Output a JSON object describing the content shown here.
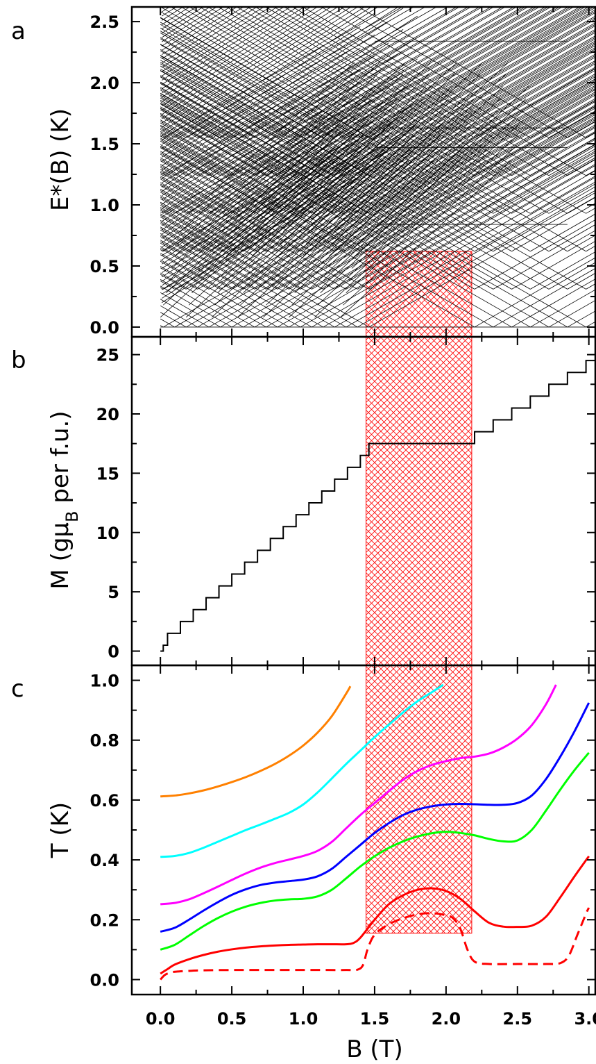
{
  "panel_labels": [
    "a",
    "b",
    "c"
  ],
  "hatch_color": "#ff0000",
  "chart_data": [
    {
      "panel": "a",
      "type": "line",
      "ylabel": "E*(B) (K)",
      "xlabel": "",
      "xlim": [
        -0.2,
        3.05
      ],
      "ylim": [
        -0.08,
        2.62
      ],
      "yticks": [
        0.0,
        0.5,
        1.0,
        1.5,
        2.0,
        2.5
      ],
      "ytick_labels": [
        "0.0",
        "0.5",
        "1.0",
        "1.5",
        "2.0",
        "2.5"
      ],
      "grid": false,
      "description_series": "Zeeman-split energy levels: dense fan of crossing lines (in-figure straight lines, slopes ±0.67 K/T)",
      "fan_slope": 0.6716,
      "crossing_fields": [
        0.02,
        0.1,
        0.18,
        0.26,
        0.34,
        0.42,
        0.5,
        0.58,
        0.66,
        0.74,
        0.82,
        0.9,
        0.98,
        1.06,
        1.14,
        1.22,
        1.3,
        1.38,
        1.46,
        2.2,
        2.33,
        2.46,
        2.59,
        2.72,
        2.85,
        2.98
      ],
      "plateau_levels": [
        0.84,
        1.47,
        1.63,
        2.34
      ],
      "hatch_box": {
        "x": [
          1.44,
          2.18
        ],
        "y": [
          0,
          0.62
        ]
      }
    },
    {
      "panel": "b",
      "type": "line",
      "ylabel": "M (gμB per f.u.)",
      "ylabel_parts": {
        "pre": "M (gμ",
        "sub": "B",
        "post": " per f.u.)"
      },
      "xlabel": "",
      "xlim": [
        -0.2,
        3.05
      ],
      "ylim": [
        -1.2,
        26.5
      ],
      "yticks": [
        0,
        5,
        10,
        15,
        20,
        25
      ],
      "ytick_labels": [
        "0",
        "5",
        "10",
        "15",
        "20",
        "25"
      ],
      "grid": false,
      "series": [
        {
          "name": "",
          "color": "#000000",
          "kind": "staircase",
          "step_fields": [
            0.02,
            0.05,
            0.14,
            0.23,
            0.32,
            0.41,
            0.5,
            0.59,
            0.68,
            0.77,
            0.86,
            0.95,
            1.04,
            1.13,
            1.22,
            1.31,
            1.4,
            1.46,
            2.2,
            2.33,
            2.46,
            2.59,
            2.72,
            2.85
          ],
          "step_values": [
            0.5,
            1.5,
            2.5,
            3.5,
            4.5,
            5.5,
            6.5,
            7.5,
            8.5,
            9.5,
            10.5,
            11.5,
            12.5,
            13.5,
            14.5,
            15.5,
            16.5,
            17.5,
            18.5,
            19.5,
            20.5,
            21.5,
            22.5,
            23.5,
            24.5
          ],
          "x_end": 3.05
        }
      ],
      "hatch_box": {
        "x": [
          1.44,
          2.18
        ],
        "y": "full"
      }
    },
    {
      "panel": "c",
      "type": "line",
      "ylabel": "T (K)",
      "xlabel": "B (T)",
      "xlim": [
        -0.2,
        3.05
      ],
      "ylim": [
        -0.05,
        1.05
      ],
      "yticks": [
        0.0,
        0.2,
        0.4,
        0.6,
        0.8,
        1.0
      ],
      "ytick_labels": [
        "0.0",
        "0.2",
        "0.4",
        "0.6",
        "0.8",
        "1.0"
      ],
      "xticks": [
        0.0,
        0.5,
        1.0,
        1.5,
        2.0,
        2.5,
        3.0
      ],
      "xtick_labels": [
        "0.0",
        "0.5",
        "1.0",
        "1.5",
        "2.0",
        "2.5",
        "3.0"
      ],
      "grid": false,
      "hatch_box": {
        "x": [
          1.44,
          2.18
        ],
        "y": [
          0.155,
          1.05
        ]
      },
      "series": [
        {
          "name": "",
          "color": "#ff8000",
          "dashed": false,
          "x": [
            0.0,
            0.1,
            0.2,
            0.3,
            0.4,
            0.5,
            0.6,
            0.7,
            0.8,
            0.9,
            1.0,
            1.1,
            1.2,
            1.3,
            1.33
          ],
          "y": [
            0.612,
            0.615,
            0.622,
            0.632,
            0.645,
            0.66,
            0.677,
            0.697,
            0.72,
            0.748,
            0.782,
            0.825,
            0.88,
            0.955,
            0.98
          ]
        },
        {
          "name": "",
          "color": "#00ffff",
          "dashed": false,
          "x": [
            0.0,
            0.1,
            0.2,
            0.3,
            0.4,
            0.5,
            0.6,
            0.7,
            0.8,
            0.9,
            1.0,
            1.1,
            1.2,
            1.3,
            1.4,
            1.5,
            1.6,
            1.7,
            1.8,
            1.9,
            1.98
          ],
          "y": [
            0.41,
            0.413,
            0.423,
            0.44,
            0.46,
            0.48,
            0.5,
            0.518,
            0.537,
            0.557,
            0.585,
            0.625,
            0.672,
            0.72,
            0.765,
            0.81,
            0.852,
            0.893,
            0.93,
            0.96,
            0.985
          ]
        },
        {
          "name": "",
          "color": "#ff00ff",
          "dashed": false,
          "x": [
            0.0,
            0.1,
            0.2,
            0.3,
            0.4,
            0.5,
            0.6,
            0.7,
            0.8,
            0.9,
            1.0,
            1.1,
            1.2,
            1.3,
            1.4,
            1.5,
            1.6,
            1.7,
            1.8,
            1.9,
            2.0,
            2.1,
            2.2,
            2.3,
            2.4,
            2.5,
            2.6,
            2.7,
            2.77
          ],
          "y": [
            0.252,
            0.256,
            0.268,
            0.288,
            0.31,
            0.333,
            0.355,
            0.374,
            0.389,
            0.401,
            0.413,
            0.43,
            0.46,
            0.505,
            0.55,
            0.59,
            0.63,
            0.668,
            0.697,
            0.717,
            0.73,
            0.74,
            0.745,
            0.755,
            0.775,
            0.805,
            0.85,
            0.92,
            0.985
          ]
        },
        {
          "name": "",
          "color": "#0000ff",
          "dashed": false,
          "x": [
            0.0,
            0.1,
            0.2,
            0.3,
            0.4,
            0.5,
            0.6,
            0.7,
            0.8,
            0.9,
            1.0,
            1.1,
            1.2,
            1.3,
            1.4,
            1.5,
            1.6,
            1.7,
            1.8,
            1.9,
            2.0,
            2.1,
            2.2,
            2.3,
            2.4,
            2.5,
            2.6,
            2.7,
            2.8,
            2.9,
            3.0
          ],
          "y": [
            0.16,
            0.173,
            0.2,
            0.23,
            0.258,
            0.283,
            0.302,
            0.316,
            0.324,
            0.329,
            0.334,
            0.345,
            0.37,
            0.41,
            0.45,
            0.49,
            0.523,
            0.55,
            0.568,
            0.579,
            0.585,
            0.587,
            0.586,
            0.584,
            0.584,
            0.59,
            0.615,
            0.67,
            0.745,
            0.83,
            0.925
          ]
        },
        {
          "name": "",
          "color": "#00ff00",
          "dashed": false,
          "x": [
            0.0,
            0.1,
            0.2,
            0.3,
            0.4,
            0.5,
            0.6,
            0.7,
            0.8,
            0.9,
            1.0,
            1.1,
            1.2,
            1.3,
            1.4,
            1.5,
            1.6,
            1.7,
            1.8,
            1.9,
            2.0,
            2.1,
            2.2,
            2.3,
            2.4,
            2.5,
            2.6,
            2.7,
            2.8,
            2.9,
            3.0
          ],
          "y": [
            0.1,
            0.116,
            0.147,
            0.178,
            0.205,
            0.227,
            0.244,
            0.256,
            0.264,
            0.268,
            0.27,
            0.278,
            0.3,
            0.338,
            0.378,
            0.412,
            0.44,
            0.462,
            0.478,
            0.489,
            0.494,
            0.49,
            0.482,
            0.47,
            0.462,
            0.465,
            0.5,
            0.565,
            0.635,
            0.7,
            0.758
          ]
        },
        {
          "name": "",
          "color": "#ff0000",
          "dashed": false,
          "x": [
            0.0,
            0.05,
            0.1,
            0.2,
            0.3,
            0.4,
            0.5,
            0.6,
            0.7,
            0.8,
            0.9,
            1.0,
            1.1,
            1.2,
            1.3,
            1.35,
            1.4,
            1.5,
            1.6,
            1.7,
            1.8,
            1.9,
            2.0,
            2.1,
            2.2,
            2.3,
            2.4,
            2.5,
            2.6,
            2.7,
            2.8,
            2.9,
            3.0
          ],
          "y": [
            0.02,
            0.035,
            0.05,
            0.068,
            0.082,
            0.093,
            0.101,
            0.107,
            0.111,
            0.114,
            0.116,
            0.117,
            0.118,
            0.118,
            0.118,
            0.122,
            0.14,
            0.2,
            0.252,
            0.282,
            0.3,
            0.305,
            0.296,
            0.27,
            0.228,
            0.19,
            0.177,
            0.176,
            0.18,
            0.21,
            0.275,
            0.345,
            0.412
          ]
        },
        {
          "name": "",
          "color": "#ff0000",
          "dashed": true,
          "x": [
            0.0,
            0.03,
            0.06,
            0.1,
            0.2,
            0.3,
            0.5,
            0.7,
            0.9,
            1.1,
            1.3,
            1.38,
            1.42,
            1.45,
            1.5,
            1.6,
            1.7,
            1.8,
            1.9,
            2.0,
            2.05,
            2.1,
            2.15,
            2.2,
            2.3,
            2.5,
            2.7,
            2.8,
            2.86,
            2.92,
            2.98,
            3.0
          ],
          "y": [
            0.0,
            0.015,
            0.022,
            0.026,
            0.029,
            0.031,
            0.032,
            0.032,
            0.032,
            0.032,
            0.032,
            0.033,
            0.05,
            0.1,
            0.15,
            0.185,
            0.205,
            0.218,
            0.222,
            0.215,
            0.205,
            0.17,
            0.1,
            0.06,
            0.052,
            0.052,
            0.052,
            0.055,
            0.08,
            0.15,
            0.22,
            0.24
          ]
        }
      ]
    }
  ]
}
